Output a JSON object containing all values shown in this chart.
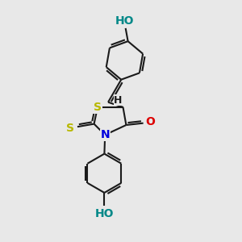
{
  "background_color": "#e8e8e8",
  "bond_color": "#1a1a1a",
  "bond_width": 1.5,
  "atom_colors": {
    "S": "#b8b800",
    "N": "#0000dd",
    "O": "#dd0000",
    "HO_teal": "#008888",
    "C": "#1a1a1a"
  },
  "font_size_atom": 10,
  "font_size_H": 9,
  "font_size_HO": 10
}
